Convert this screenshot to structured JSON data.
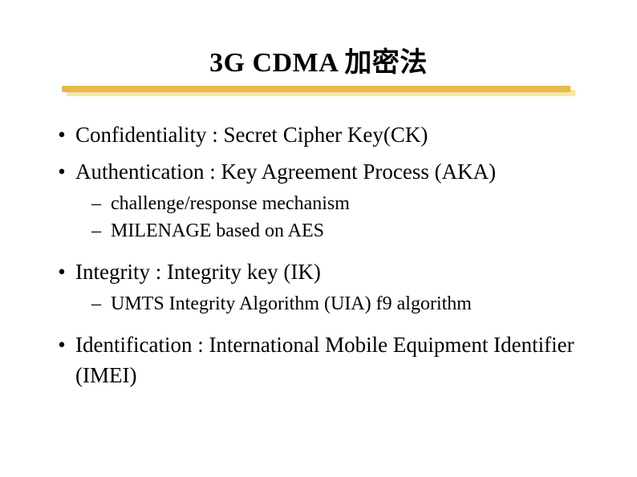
{
  "title": "3G CDMA 加密法",
  "underline": {
    "main_color": "#e8b84a",
    "shadow_color": "#f7e6a6"
  },
  "bullets": [
    {
      "text": "Confidentiality : Secret Cipher Key(CK)",
      "sub": []
    },
    {
      "text": "Authentication : Key Agreement Process (AKA)",
      "sub": [
        "challenge/response mechanism",
        "MILENAGE based on AES"
      ]
    },
    {
      "text": "Integrity : Integrity key (IK)",
      "sub": [
        "UMTS Integrity Algorithm (UIA) f9 algorithm"
      ]
    },
    {
      "text": "Identification : International Mobile Equipment Identifier (IMEI)",
      "sub": []
    }
  ],
  "glyphs": {
    "dot": "•",
    "dash": "–"
  },
  "typography": {
    "title_fontsize": 34,
    "l1_fontsize": 27,
    "l2_fontsize": 24,
    "font_family": "Times New Roman"
  },
  "colors": {
    "text": "#000000",
    "background": "#ffffff"
  }
}
